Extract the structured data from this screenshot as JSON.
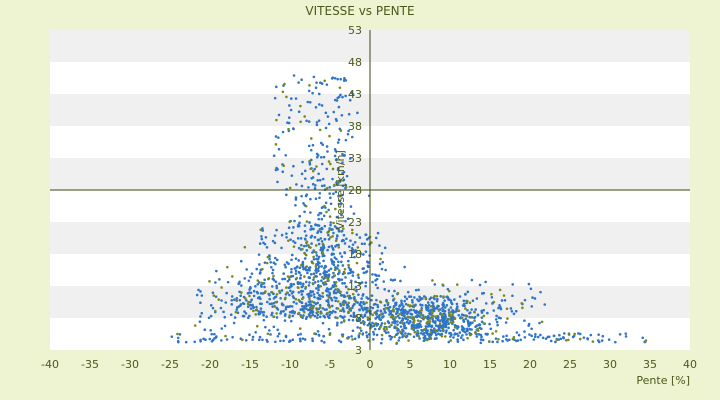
{
  "chart_data": {
    "type": "scatter",
    "title": "VITESSE vs PENTE",
    "xlabel": "Pente [%]",
    "ylabel": "Vitesse [km/h]",
    "xlim": [
      -40,
      40
    ],
    "ylim": [
      3,
      53
    ],
    "xticks": [
      "-40",
      "-35",
      "-30",
      "-25",
      "-20",
      "-15",
      "-10",
      "-5",
      "0",
      "5",
      "10",
      "15",
      "20",
      "25",
      "30",
      "35",
      "40"
    ],
    "yticks": [
      "3",
      "8",
      "13",
      "18",
      "23",
      "28",
      "33",
      "38",
      "43",
      "48",
      "53"
    ],
    "grid": "horizontal bands",
    "series": [
      {
        "color": "#2e75c8",
        "count": 1800
      },
      {
        "color": "#7a8a1a",
        "count": 320
      }
    ],
    "colors": {
      "background": "#eef3d2",
      "plot_bg": "#ffffff",
      "band": "#f0f0f0",
      "axis": "#3a4a10"
    }
  }
}
